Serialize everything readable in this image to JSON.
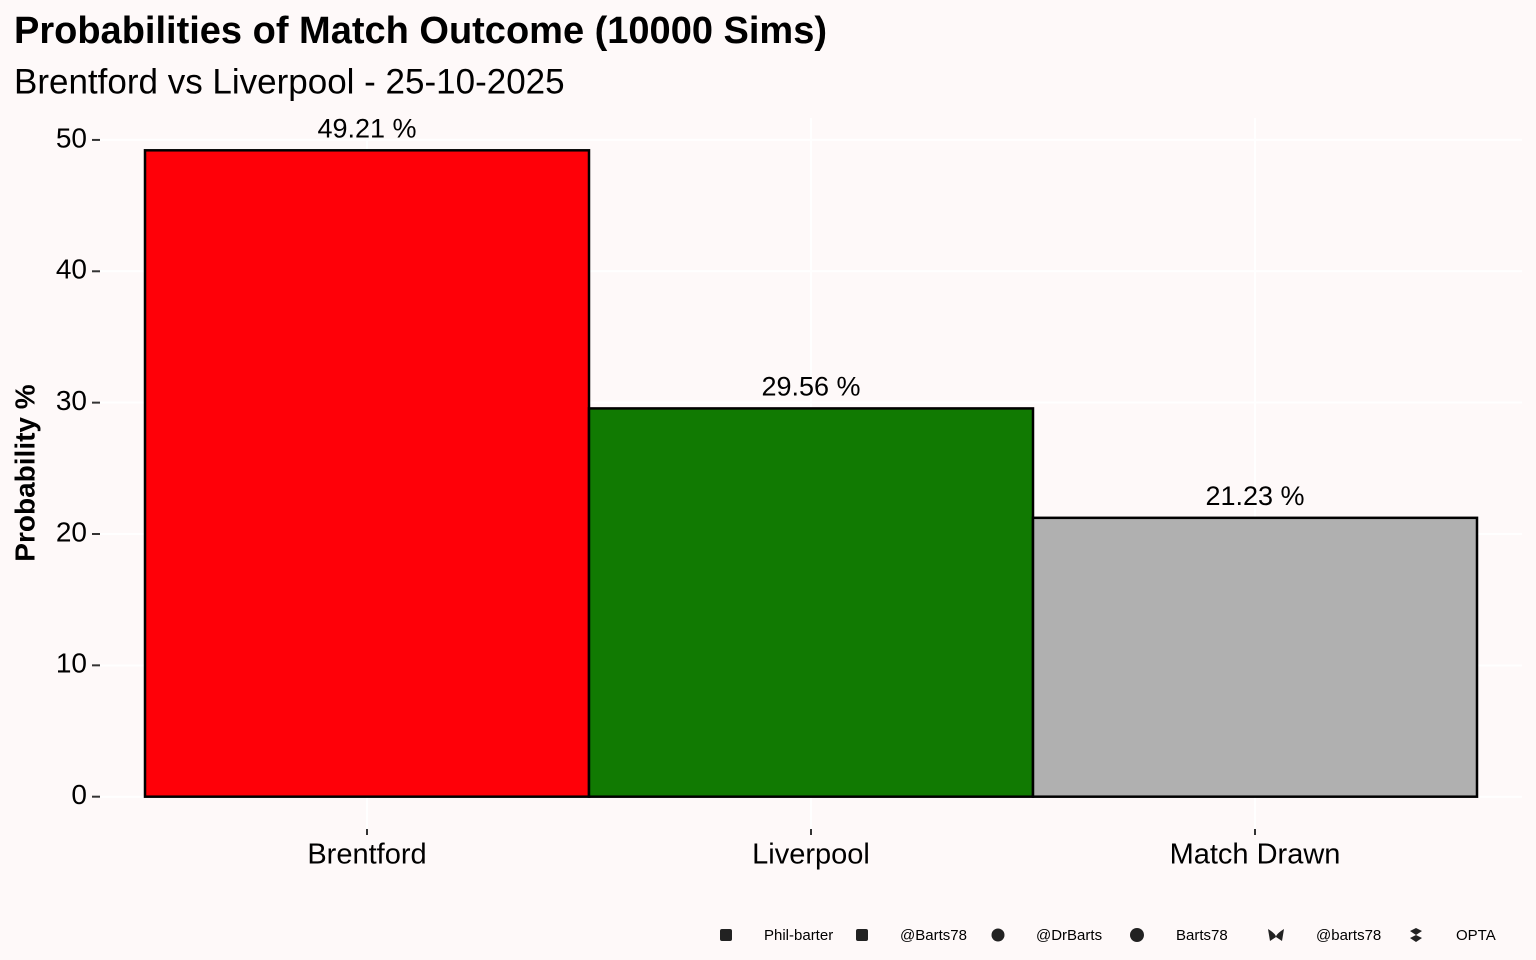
{
  "chart_data": {
    "type": "bar",
    "title": "Probabilities of Match Outcome (10000 Sims)",
    "subtitle": "Brentford vs Liverpool - 25-10-2025",
    "y_label": "Probability %",
    "categories": [
      "Brentford",
      "Liverpool",
      "Match Drawn"
    ],
    "values": [
      49.21,
      29.56,
      21.23
    ],
    "value_labels": [
      "49.21  %",
      "29.56  %",
      "21.23  %"
    ],
    "colors": [
      "#ff0008",
      "#117a02",
      "#b0b0b0"
    ],
    "ylim": [
      -2.46,
      51.67
    ],
    "yticks": [
      0,
      10,
      20,
      30,
      40,
      50
    ],
    "grid": true,
    "footer": [
      "Phil-barter",
      "@Barts78",
      "@DrBarts",
      "Barts78",
      "@barts78",
      "OPTA"
    ]
  }
}
